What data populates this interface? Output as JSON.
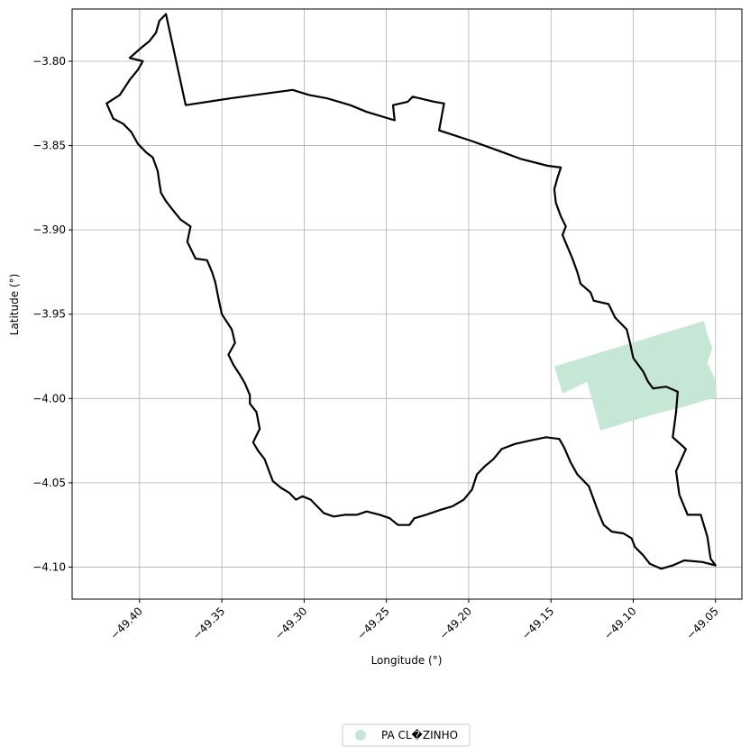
{
  "chart_data": {
    "type": "map",
    "xlabel": "Longitude (°)",
    "ylabel": "Latitude (°)",
    "xlim": [
      -49.441,
      -49.034
    ],
    "ylim": [
      -4.119,
      -3.769
    ],
    "grid": true,
    "legend_placement": "bottom-center",
    "x_ticks": [
      -49.4,
      -49.35,
      -49.3,
      -49.25,
      -49.2,
      -49.15,
      -49.1,
      -49.05
    ],
    "x_tick_labels": [
      "−49.40",
      "−49.35",
      "−49.30",
      "−49.25",
      "−49.20",
      "−49.15",
      "−49.10",
      "−49.05"
    ],
    "y_ticks": [
      -3.8,
      -3.85,
      -3.9,
      -3.95,
      -4.0,
      -4.05,
      -4.1
    ],
    "y_tick_labels": [
      "−3.80",
      "−3.85",
      "−3.90",
      "−3.95",
      "−4.00",
      "−4.05",
      "−4.10"
    ],
    "boundary": {
      "color": "#000000",
      "coords": [
        [
          -49.384,
          -3.772
        ],
        [
          -49.372,
          -3.826
        ],
        [
          -49.345,
          -3.822
        ],
        [
          -49.307,
          -3.817
        ],
        [
          -49.297,
          -3.82
        ],
        [
          -49.286,
          -3.822
        ],
        [
          -49.272,
          -3.826
        ],
        [
          -49.262,
          -3.83
        ],
        [
          -49.245,
          -3.835
        ],
        [
          -49.246,
          -3.826
        ],
        [
          -49.237,
          -3.824
        ],
        [
          -49.234,
          -3.821
        ],
        [
          -49.221,
          -3.824
        ],
        [
          -49.215,
          -3.825
        ],
        [
          -49.218,
          -3.841
        ],
        [
          -49.199,
          -3.847
        ],
        [
          -49.182,
          -3.853
        ],
        [
          -49.168,
          -3.858
        ],
        [
          -49.152,
          -3.862
        ],
        [
          -49.144,
          -3.863
        ],
        [
          -49.146,
          -3.869
        ],
        [
          -49.148,
          -3.876
        ],
        [
          -49.147,
          -3.884
        ],
        [
          -49.144,
          -3.892
        ],
        [
          -49.141,
          -3.898
        ],
        [
          -49.143,
          -3.903
        ],
        [
          -49.14,
          -3.91
        ],
        [
          -49.137,
          -3.917
        ],
        [
          -49.134,
          -3.925
        ],
        [
          -49.132,
          -3.932
        ],
        [
          -49.126,
          -3.937
        ],
        [
          -49.124,
          -3.942
        ],
        [
          -49.115,
          -3.944
        ],
        [
          -49.111,
          -3.952
        ],
        [
          -49.104,
          -3.959
        ],
        [
          -49.102,
          -3.967
        ],
        [
          -49.1,
          -3.976
        ],
        [
          -49.094,
          -3.984
        ],
        [
          -49.091,
          -3.99
        ],
        [
          -49.088,
          -3.994
        ],
        [
          -49.08,
          -3.993
        ],
        [
          -49.073,
          -3.996
        ],
        [
          -49.074,
          -4.008
        ],
        [
          -49.076,
          -4.023
        ],
        [
          -49.068,
          -4.03
        ],
        [
          -49.074,
          -4.043
        ],
        [
          -49.072,
          -4.057
        ],
        [
          -49.067,
          -4.069
        ],
        [
          -49.059,
          -4.069
        ],
        [
          -49.055,
          -4.082
        ],
        [
          -49.053,
          -4.095
        ],
        [
          -49.05,
          -4.099
        ],
        [
          -49.058,
          -4.097
        ],
        [
          -49.069,
          -4.096
        ],
        [
          -49.076,
          -4.099
        ],
        [
          -49.083,
          -4.101
        ],
        [
          -49.09,
          -4.098
        ],
        [
          -49.094,
          -4.093
        ],
        [
          -49.099,
          -4.088
        ],
        [
          -49.101,
          -4.083
        ],
        [
          -49.106,
          -4.08
        ],
        [
          -49.113,
          -4.079
        ],
        [
          -49.118,
          -4.075
        ],
        [
          -49.121,
          -4.068
        ],
        [
          -49.124,
          -4.06
        ],
        [
          -49.127,
          -4.052
        ],
        [
          -49.134,
          -4.045
        ],
        [
          -49.138,
          -4.038
        ],
        [
          -49.142,
          -4.029
        ],
        [
          -49.145,
          -4.024
        ],
        [
          -49.153,
          -4.023
        ],
        [
          -49.163,
          -4.025
        ],
        [
          -49.172,
          -4.027
        ],
        [
          -49.18,
          -4.03
        ],
        [
          -49.185,
          -4.036
        ],
        [
          -49.19,
          -4.04
        ],
        [
          -49.195,
          -4.045
        ],
        [
          -49.198,
          -4.054
        ],
        [
          -49.203,
          -4.06
        ],
        [
          -49.21,
          -4.064
        ],
        [
          -49.217,
          -4.066
        ],
        [
          -49.226,
          -4.069
        ],
        [
          -49.233,
          -4.071
        ],
        [
          -49.236,
          -4.075
        ],
        [
          -49.243,
          -4.075
        ],
        [
          -49.248,
          -4.071
        ],
        [
          -49.254,
          -4.069
        ],
        [
          -49.262,
          -4.067
        ],
        [
          -49.268,
          -4.069
        ],
        [
          -49.275,
          -4.069
        ],
        [
          -49.282,
          -4.07
        ],
        [
          -49.288,
          -4.068
        ],
        [
          -49.292,
          -4.064
        ],
        [
          -49.296,
          -4.06
        ],
        [
          -49.301,
          -4.058
        ],
        [
          -49.305,
          -4.06
        ],
        [
          -49.309,
          -4.056
        ],
        [
          -49.314,
          -4.053
        ],
        [
          -49.319,
          -4.049
        ],
        [
          -49.321,
          -4.044
        ],
        [
          -49.324,
          -4.036
        ],
        [
          -49.328,
          -4.031
        ],
        [
          -49.331,
          -4.026
        ],
        [
          -49.327,
          -4.018
        ],
        [
          -49.329,
          -4.008
        ],
        [
          -49.333,
          -4.003
        ],
        [
          -49.333,
          -3.998
        ],
        [
          -49.336,
          -3.991
        ],
        [
          -49.339,
          -3.986
        ],
        [
          -49.343,
          -3.98
        ],
        [
          -49.346,
          -3.974
        ],
        [
          -49.342,
          -3.967
        ],
        [
          -49.344,
          -3.959
        ],
        [
          -49.35,
          -3.95
        ],
        [
          -49.352,
          -3.941
        ],
        [
          -49.354,
          -3.931
        ],
        [
          -49.356,
          -3.925
        ],
        [
          -49.359,
          -3.918
        ],
        [
          -49.366,
          -3.917
        ],
        [
          -49.371,
          -3.907
        ],
        [
          -49.369,
          -3.898
        ],
        [
          -49.375,
          -3.894
        ],
        [
          -49.38,
          -3.888
        ],
        [
          -49.384,
          -3.883
        ],
        [
          -49.387,
          -3.878
        ],
        [
          -49.388,
          -3.872
        ],
        [
          -49.389,
          -3.865
        ],
        [
          -49.392,
          -3.857
        ],
        [
          -49.396,
          -3.854
        ],
        [
          -49.401,
          -3.849
        ],
        [
          -49.405,
          -3.842
        ],
        [
          -49.41,
          -3.837
        ],
        [
          -49.416,
          -3.834
        ],
        [
          -49.42,
          -3.825
        ],
        [
          -49.412,
          -3.82
        ],
        [
          -49.406,
          -3.811
        ],
        [
          -49.401,
          -3.805
        ],
        [
          -49.398,
          -3.8
        ],
        [
          -49.406,
          -3.798
        ],
        [
          -49.399,
          -3.792
        ],
        [
          -49.394,
          -3.788
        ],
        [
          -49.39,
          -3.783
        ],
        [
          -49.388,
          -3.776
        ],
        [
          -49.384,
          -3.772
        ]
      ]
    },
    "series": [
      {
        "name": "PA CL�ZINHO",
        "color": "#c6e7d6",
        "coords": [
          [
            -49.148,
            -3.981
          ],
          [
            -49.057,
            -3.954
          ],
          [
            -49.055,
            -3.962
          ],
          [
            -49.052,
            -3.97
          ],
          [
            -49.055,
            -3.979
          ],
          [
            -49.051,
            -3.987
          ],
          [
            -49.049,
            -3.999
          ],
          [
            -49.066,
            -4.004
          ],
          [
            -49.09,
            -4.01
          ],
          [
            -49.12,
            -4.019
          ],
          [
            -49.128,
            -3.99
          ],
          [
            -49.143,
            -3.997
          ]
        ]
      }
    ]
  }
}
